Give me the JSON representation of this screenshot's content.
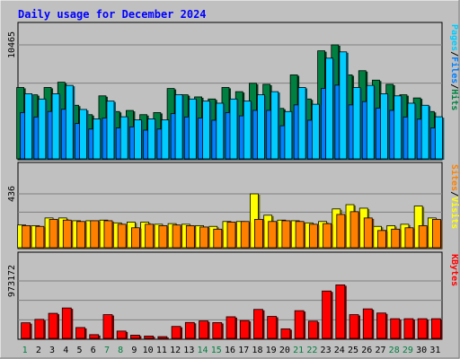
{
  "chart_data": [
    {
      "type": "bar",
      "title": "Daily usage for December 2024",
      "categories": [
        "1",
        "2",
        "3",
        "4",
        "5",
        "6",
        "7",
        "8",
        "9",
        "10",
        "11",
        "12",
        "13",
        "14",
        "15",
        "16",
        "17",
        "18",
        "19",
        "20",
        "21",
        "22",
        "23",
        "24",
        "25",
        "26",
        "27",
        "28",
        "29",
        "30",
        "31"
      ],
      "weekend_days": [
        "1",
        "7",
        "8",
        "14",
        "15",
        "21",
        "22",
        "28",
        "29"
      ],
      "ymax_label": "10465",
      "ymax": 10465,
      "legend": [
        {
          "label": "Pages",
          "color": "#00ccff"
        },
        {
          "label": "/",
          "color": "#000000"
        },
        {
          "label": "Files",
          "color": "#0080ff"
        },
        {
          "label": "/",
          "color": "#000000"
        },
        {
          "label": "Hits",
          "color": "#008040"
        }
      ],
      "series": [
        {
          "name": "Hits",
          "color": "#008040",
          "values": [
            6586,
            5918,
            6586,
            7063,
            4966,
            4108,
            5822,
            4394,
            4489,
            4108,
            4298,
            6490,
            5918,
            5726,
            5536,
            6586,
            6204,
            6969,
            6873,
            4679,
            7731,
            5536,
            9924,
            10465,
            7731,
            8113,
            7254,
            6873,
            5918,
            5631,
            4394
          ]
        },
        {
          "name": "Files",
          "color": "#0080ff",
          "values": [
            4300,
            3900,
            4400,
            4600,
            3300,
            2800,
            3800,
            2900,
            3000,
            2700,
            2800,
            4200,
            3900,
            3800,
            3600,
            4300,
            4000,
            4500,
            4500,
            3100,
            5000,
            3600,
            6500,
            6800,
            5000,
            5300,
            4700,
            4500,
            3900,
            3700,
            2900
          ]
        },
        {
          "name": "Pages",
          "color": "#00ccff",
          "values": [
            6013,
            5536,
            6013,
            6777,
            4584,
            3726,
            5345,
            3917,
            3631,
            3726,
            3631,
            5918,
            5536,
            5345,
            5154,
            5536,
            5345,
            5918,
            6204,
            4394,
            6586,
            5058,
            9255,
            9828,
            6586,
            6777,
            6013,
            5822,
            5154,
            4966,
            3917
          ]
        }
      ]
    },
    {
      "type": "bar",
      "ymax_label": "436",
      "ymax": 436,
      "legend": [
        {
          "label": "Sites",
          "color": "#ff8000"
        },
        {
          "label": "/",
          "color": "#000000"
        },
        {
          "label": "Visits",
          "color": "#ffff00"
        }
      ],
      "series": [
        {
          "name": "Visits",
          "color": "#ffff00",
          "values": [
            188,
            183,
            244,
            244,
            222,
            222,
            227,
            205,
            211,
            211,
            194,
            199,
            194,
            183,
            177,
            216,
            216,
            436,
            266,
            227,
            222,
            205,
            216,
            316,
            350,
            322,
            177,
            183,
            194,
            339,
            244
          ]
        },
        {
          "name": "Sites",
          "color": "#ff8000",
          "values": [
            183,
            177,
            233,
            227,
            216,
            222,
            222,
            194,
            166,
            194,
            183,
            188,
            183,
            172,
            155,
            211,
            216,
            233,
            216,
            222,
            216,
            194,
            199,
            272,
            294,
            244,
            144,
            155,
            166,
            183,
            233
          ]
        }
      ]
    },
    {
      "type": "bar",
      "ymax_label": "973172",
      "ymax": 973172,
      "legend": [
        {
          "label": "KBytes",
          "color": "#ff0000"
        }
      ],
      "series": [
        {
          "name": "KBytes",
          "color": "#ff0000",
          "values": [
            275000,
            332000,
            433000,
            522000,
            196000,
            77000,
            411000,
            137000,
            68000,
            53000,
            44000,
            214000,
            280000,
            306000,
            278000,
            375000,
            312000,
            498000,
            381000,
            174000,
            477000,
            303000,
            805000,
            907000,
            411000,
            507000,
            438000,
            343000,
            343000,
            343000,
            343000
          ]
        }
      ]
    }
  ]
}
